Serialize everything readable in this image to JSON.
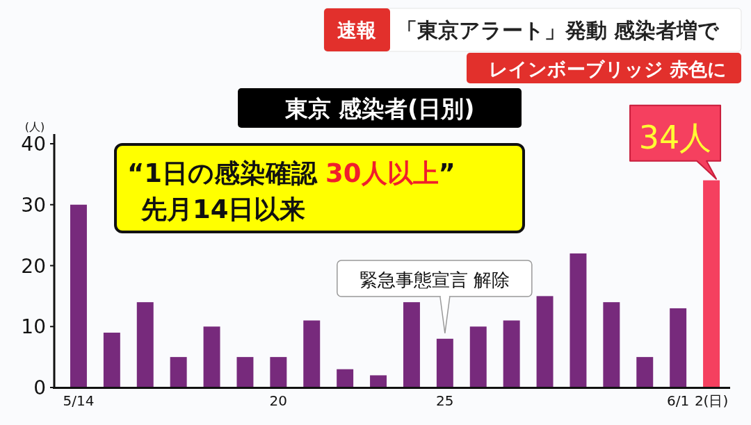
{
  "chart_data": {
    "type": "bar",
    "title": "東京 感染者(日別)",
    "ylabel": "(人)",
    "categories": [
      "5/14",
      null,
      null,
      null,
      null,
      null,
      "20",
      null,
      null,
      null,
      null,
      "25",
      null,
      null,
      null,
      null,
      null,
      null,
      "6/1",
      "2(日)"
    ],
    "values": [
      30,
      9,
      14,
      5,
      10,
      5,
      5,
      11,
      3,
      2,
      14,
      8,
      10,
      11,
      15,
      22,
      14,
      5,
      13,
      34
    ],
    "colors": [
      "#772a7c",
      "#772a7c",
      "#772a7c",
      "#772a7c",
      "#772a7c",
      "#772a7c",
      "#772a7c",
      "#772a7c",
      "#772a7c",
      "#772a7c",
      "#772a7c",
      "#772a7c",
      "#772a7c",
      "#772a7c",
      "#772a7c",
      "#772a7c",
      "#772a7c",
      "#772a7c",
      "#772a7c",
      "#f5405f"
    ],
    "value_labels": [
      null,
      null,
      null,
      null,
      null,
      null,
      null,
      null,
      null,
      null,
      null,
      null,
      null,
      null,
      null,
      null,
      null,
      null,
      null,
      "34人"
    ],
    "ylim": [
      0,
      40
    ],
    "yticks": [
      0,
      10,
      20,
      30,
      40
    ],
    "grid": false,
    "annotations": [
      "速報",
      "「東京アラート」発動 感染者増で",
      "レインボーブリッジ 赤色に",
      "“1日の感染確認",
      "30人以上",
      "”",
      "先月14日以来",
      {
        "text": "緊急事態宣言 解除",
        "x": "25",
        "y": 8
      }
    ]
  }
}
